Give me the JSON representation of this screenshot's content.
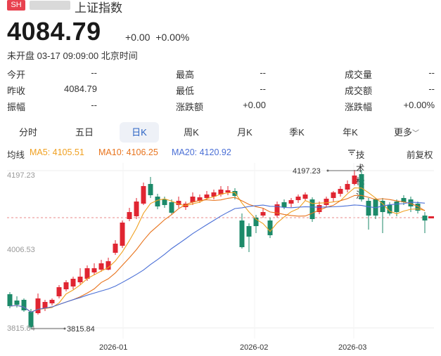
{
  "header": {
    "badge": "SH",
    "name": "上证指数"
  },
  "quote": {
    "price": "4084.79",
    "change": "+0.00",
    "change_pct": "+0.00%",
    "status": "未开盘 03-17 09:09:00 北京时间"
  },
  "stats": [
    [
      {
        "label": "今开",
        "value": "--"
      },
      {
        "label": "最高",
        "value": "--"
      },
      {
        "label": "成交量",
        "value": "--"
      }
    ],
    [
      {
        "label": "昨收",
        "value": "4084.79"
      },
      {
        "label": "最低",
        "value": "--"
      },
      {
        "label": "成交额",
        "value": "--"
      }
    ],
    [
      {
        "label": "振幅",
        "value": "--"
      },
      {
        "label": "涨跌额",
        "value": "+0.00"
      },
      {
        "label": "涨跌幅",
        "value": "+0.00%"
      }
    ]
  ],
  "tabs": [
    "分时",
    "五日",
    "日K",
    "周K",
    "月K",
    "季K",
    "年K",
    "更多"
  ],
  "active_tab": "日K",
  "ma": {
    "label": "均线",
    "ma5": "MA5: 4105.51",
    "ma10": "MA10: 4106.25",
    "ma20": "MA20: 4120.92",
    "tech": "技术标注",
    "fq": "前复权"
  },
  "colors": {
    "up": "#e02531",
    "down": "#1c8a69",
    "ma5": "#f0a020",
    "ma10": "#e8731c",
    "ma20": "#4a6fd6",
    "accent": "#2b63c4",
    "badge": "#e8424f"
  },
  "chart_data": {
    "type": "candlestick",
    "y_ticks": [
      "4197.23",
      "4006.53",
      "3815.84"
    ],
    "ylim": [
      3815.84,
      4197.23
    ],
    "x_ticks": [
      "2026-01",
      "2026-02",
      "2026-03"
    ],
    "max_annotation": "4197.23",
    "min_annotation": "3815.84",
    "last_close": 4084.79
  }
}
